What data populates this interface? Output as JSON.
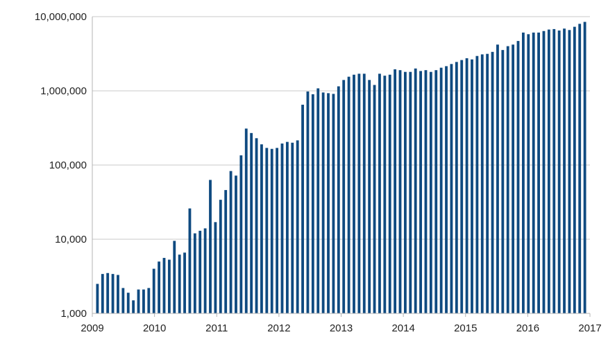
{
  "chart_data": {
    "type": "bar",
    "title": "",
    "xlabel": "",
    "ylabel": "",
    "y_scale": "log",
    "ylim": [
      1000,
      10000000
    ],
    "y_ticks": [
      1000,
      10000,
      100000,
      1000000,
      10000000
    ],
    "y_tick_labels": [
      "1,000",
      "10,000",
      "100,000",
      "1,000,000",
      "10,000,000"
    ],
    "x_tick_labels": [
      "2009",
      "2010",
      "2011",
      "2012",
      "2013",
      "2014",
      "2015",
      "2016",
      "2017"
    ],
    "x_start": "2009-01",
    "x_end": "2016-12",
    "grid": true,
    "legend": "none",
    "bar_color": "#0f4a80",
    "categories": [
      "2009-01",
      "2009-02",
      "2009-03",
      "2009-04",
      "2009-05",
      "2009-06",
      "2009-07",
      "2009-08",
      "2009-09",
      "2009-10",
      "2009-11",
      "2009-12",
      "2010-01",
      "2010-02",
      "2010-03",
      "2010-04",
      "2010-05",
      "2010-06",
      "2010-07",
      "2010-08",
      "2010-09",
      "2010-10",
      "2010-11",
      "2010-12",
      "2011-01",
      "2011-02",
      "2011-03",
      "2011-04",
      "2011-05",
      "2011-06",
      "2011-07",
      "2011-08",
      "2011-09",
      "2011-10",
      "2011-11",
      "2011-12",
      "2012-01",
      "2012-02",
      "2012-03",
      "2012-04",
      "2012-05",
      "2012-06",
      "2012-07",
      "2012-08",
      "2012-09",
      "2012-10",
      "2012-11",
      "2012-12",
      "2013-01",
      "2013-02",
      "2013-03",
      "2013-04",
      "2013-05",
      "2013-06",
      "2013-07",
      "2013-08",
      "2013-09",
      "2013-10",
      "2013-11",
      "2013-12",
      "2014-01",
      "2014-02",
      "2014-03",
      "2014-04",
      "2014-05",
      "2014-06",
      "2014-07",
      "2014-08",
      "2014-09",
      "2014-10",
      "2014-11",
      "2014-12",
      "2015-01",
      "2015-02",
      "2015-03",
      "2015-04",
      "2015-05",
      "2015-06",
      "2015-07",
      "2015-08",
      "2015-09",
      "2015-10",
      "2015-11",
      "2015-12",
      "2016-01",
      "2016-02",
      "2016-03",
      "2016-04",
      "2016-05",
      "2016-06",
      "2016-07",
      "2016-08",
      "2016-09",
      "2016-10",
      "2016-11",
      "2016-12"
    ],
    "values": [
      2500,
      3400,
      3500,
      3400,
      3300,
      2200,
      1900,
      1500,
      2100,
      2100,
      2200,
      4000,
      5000,
      5600,
      5300,
      9500,
      6200,
      6600,
      26000,
      12000,
      13000,
      14000,
      63000,
      17000,
      34000,
      46000,
      83000,
      72000,
      135000,
      310000,
      270000,
      230000,
      190000,
      170000,
      165000,
      170000,
      195000,
      205000,
      200000,
      215000,
      650000,
      980000,
      900000,
      1080000,
      950000,
      930000,
      910000,
      1150000,
      1400000,
      1550000,
      1650000,
      1700000,
      1700000,
      1400000,
      1200000,
      1700000,
      1600000,
      1650000,
      1950000,
      1900000,
      1800000,
      1800000,
      2000000,
      1850000,
      1900000,
      1800000,
      1900000,
      2050000,
      2150000,
      2300000,
      2450000,
      2600000,
      2750000,
      2650000,
      2950000,
      3100000,
      3150000,
      3350000,
      4200000,
      3550000,
      4000000,
      4200000,
      4700000,
      6100000,
      5800000,
      6100000,
      6100000,
      6400000,
      6700000,
      6800000,
      6500000,
      6900000,
      6600000,
      7300000,
      8000000,
      8500000
    ]
  }
}
